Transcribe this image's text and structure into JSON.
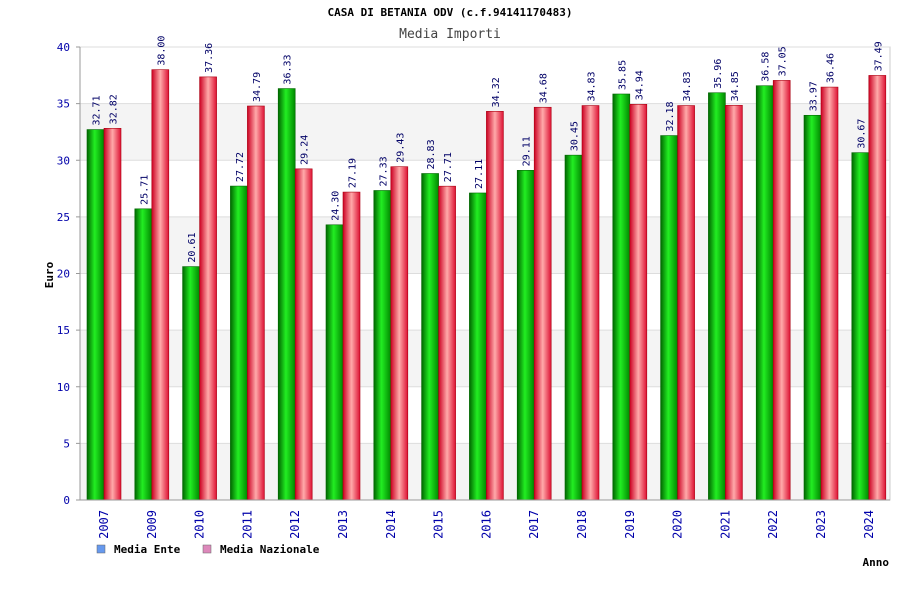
{
  "chart_data": {
    "type": "bar",
    "title": "CASA DI BETANIA ODV (c.f.94141170483)",
    "subtitle": "Media Importi",
    "xlabel": "Anno",
    "ylabel": "Euro",
    "ylim": [
      0,
      40
    ],
    "yticks": [
      0,
      5,
      10,
      15,
      20,
      25,
      30,
      35,
      40
    ],
    "grid": true,
    "legend_position": "bottom-left",
    "categories": [
      "2007",
      "2009",
      "2010",
      "2011",
      "2012",
      "2013",
      "2014",
      "2015",
      "2016",
      "2017",
      "2018",
      "2019",
      "2020",
      "2021",
      "2022",
      "2023",
      "2024"
    ],
    "series": [
      {
        "name": "Media Ente",
        "color": "#00cc00",
        "legend_color": "#6699ee",
        "values": [
          32.71,
          25.71,
          20.61,
          27.72,
          36.33,
          24.3,
          27.33,
          28.83,
          27.11,
          29.11,
          30.45,
          35.85,
          32.18,
          35.96,
          36.58,
          33.97,
          30.67
        ],
        "labels": [
          "32.71",
          "25.71",
          "20.61",
          "27.72",
          "36.33",
          "24.30",
          "27.33",
          "28.83",
          "27.11",
          "29.11",
          "30.45",
          "35.85",
          "32.18",
          "35.96",
          "36.58",
          "33.97",
          "30.67"
        ]
      },
      {
        "name": "Media Nazionale",
        "color": "#ee2233",
        "legend_color": "#dd88bb",
        "values": [
          32.82,
          38.0,
          37.36,
          34.79,
          29.24,
          27.19,
          29.43,
          27.71,
          34.32,
          34.68,
          34.83,
          34.94,
          34.83,
          34.85,
          37.05,
          36.46,
          37.49
        ],
        "labels": [
          "32.82",
          "38.00",
          "37.36",
          "34.79",
          "29.24",
          "27.19",
          "29.43",
          "27.71",
          "34.32",
          "34.68",
          "34.83",
          "34.94",
          "34.83",
          "34.85",
          "37.05",
          "36.46",
          "37.49"
        ]
      }
    ]
  }
}
